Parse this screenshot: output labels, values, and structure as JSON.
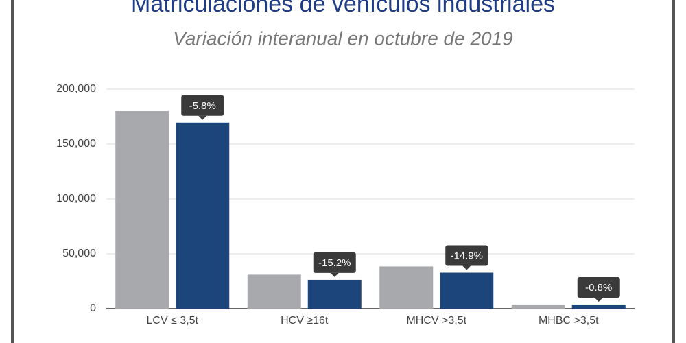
{
  "chart_data": {
    "type": "bar",
    "title": "Matriculaciones de vehículos industriales",
    "subtitle": "Variación interanual en octubre de 2019",
    "categories": [
      "LCV ≤ 3,5t",
      "HCV ≥16t",
      "MHCV >3,5t",
      "MHBC >3,5t"
    ],
    "series": [
      {
        "color": "#a7a9ac",
        "values": [
          180000,
          31000,
          38500,
          3800
        ]
      },
      {
        "color": "#1b457b",
        "values": [
          169500,
          26300,
          32800,
          3770
        ]
      }
    ],
    "annotations": [
      "-5.8%",
      "-15.2%",
      "-14.9%",
      "-0.8%"
    ],
    "ylim": [
      0,
      200000
    ],
    "yticks": [
      {
        "value": 0,
        "label": "0"
      },
      {
        "value": 50000,
        "label": "50,000"
      },
      {
        "value": 100000,
        "label": "100,000"
      },
      {
        "value": 150000,
        "label": "150,000"
      },
      {
        "value": 200000,
        "label": "200,000"
      }
    ],
    "grid": true
  }
}
